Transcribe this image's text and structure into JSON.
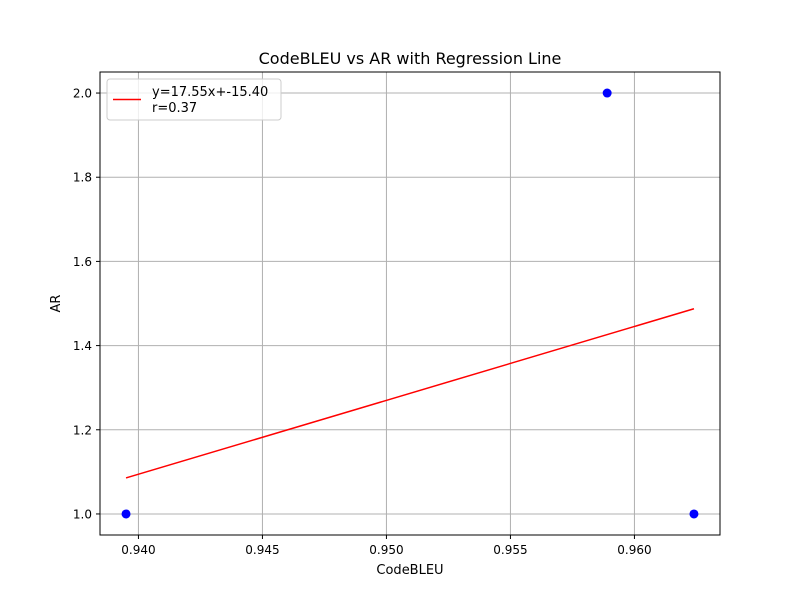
{
  "chart_data": {
    "type": "scatter",
    "title": "CodeBLEU vs AR with Regression Line",
    "xlabel": "CodeBLEU",
    "ylabel": "AR",
    "xlim": [
      0.93845,
      0.96345
    ],
    "ylim": [
      0.95,
      2.05
    ],
    "x_ticks": [
      0.94,
      0.945,
      0.95,
      0.955,
      0.96
    ],
    "x_tick_labels": [
      "0.940",
      "0.945",
      "0.950",
      "0.955",
      "0.960"
    ],
    "y_ticks": [
      1.0,
      1.2,
      1.4,
      1.6,
      1.8,
      2.0
    ],
    "y_tick_labels": [
      "1.0",
      "1.2",
      "1.4",
      "1.6",
      "1.8",
      "2.0"
    ],
    "grid": true,
    "legend_position": "top-left",
    "series": [
      {
        "type": "scatter",
        "color": "#0000ff",
        "points": [
          {
            "x": 0.9395,
            "y": 1.0
          },
          {
            "x": 0.9589,
            "y": 2.0
          },
          {
            "x": 0.9624,
            "y": 1.0
          }
        ]
      },
      {
        "type": "line",
        "name": "y=17.55x+-15.40\nr=0.37",
        "color": "#ff0000",
        "points": [
          {
            "x": 0.9395,
            "y": 1.0856
          },
          {
            "x": 0.9624,
            "y": 1.4875
          }
        ]
      }
    ],
    "legend": {
      "line1": "y=17.55x+-15.40",
      "line2": "r=0.37"
    }
  }
}
